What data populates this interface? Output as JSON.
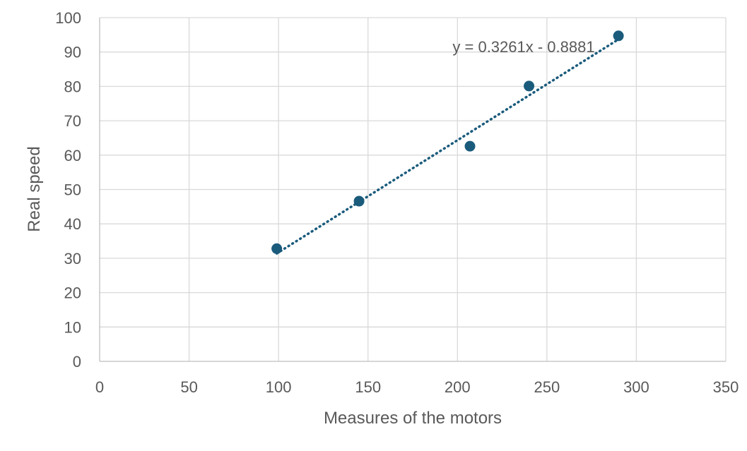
{
  "chart_data": {
    "type": "scatter",
    "xlabel": "Measures of the motors",
    "ylabel": "Real speed",
    "xlim": [
      0,
      350
    ],
    "ylim": [
      0,
      100
    ],
    "x_ticks": [
      0,
      50,
      100,
      150,
      200,
      250,
      300,
      350
    ],
    "y_ticks": [
      0,
      10,
      20,
      30,
      40,
      50,
      60,
      70,
      80,
      90,
      100
    ],
    "grid": true,
    "marker_color": "#1a5b7c",
    "series": [
      {
        "points": [
          {
            "x": 99,
            "y": 32.8
          },
          {
            "x": 145,
            "y": 46.6
          },
          {
            "x": 207,
            "y": 62.6
          },
          {
            "x": 240,
            "y": 80.1
          },
          {
            "x": 290,
            "y": 94.7
          }
        ]
      }
    ],
    "trendline": {
      "type": "linear",
      "style": "dotted",
      "slope": 0.3261,
      "intercept": -0.8881,
      "x_range": [
        99,
        290
      ],
      "equation_label": "y = 0.3261x - 0.8881"
    }
  }
}
